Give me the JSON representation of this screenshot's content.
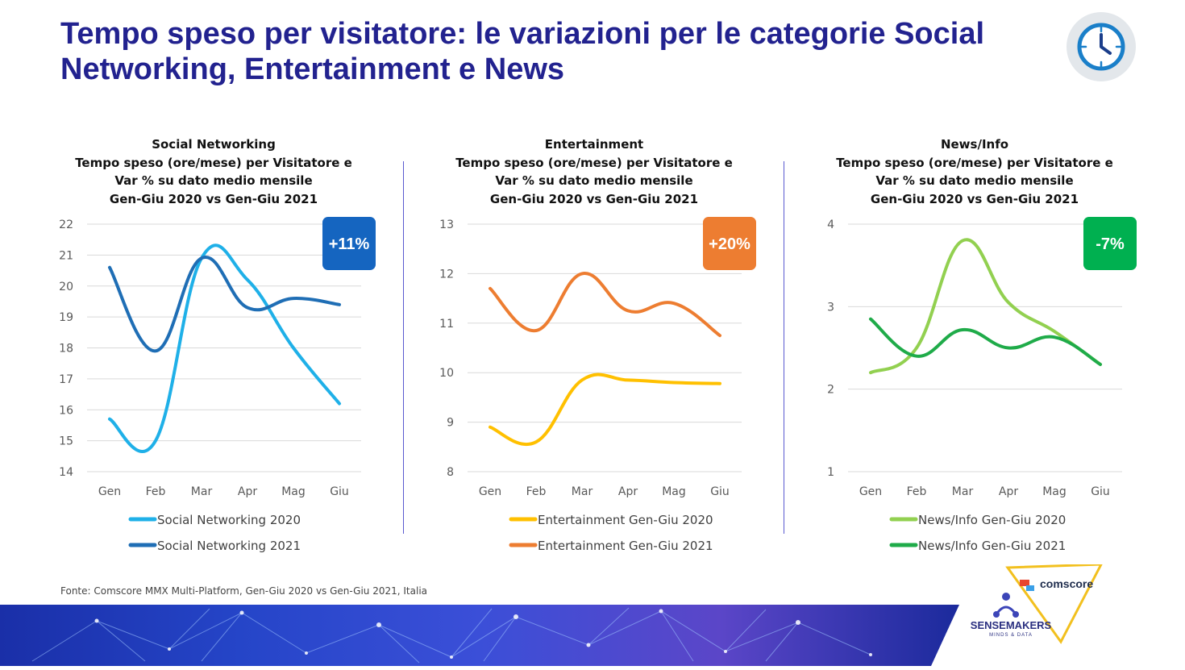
{
  "title": "Tempo speso per visitatore: le variazioni per le categorie Social Networking, Entertainment e News",
  "source": "Fonte: Comscore MMX Multi-Platform, Gen-Giu 2020 vs Gen-Giu 2021, Italia",
  "logos": {
    "comscore": "comscore",
    "sensemakers": "SENSEMAKERS",
    "sensemakers_tagline": "MINDS & DATA"
  },
  "icons": {
    "clock": "clock-icon"
  },
  "chart_data": [
    {
      "type": "line",
      "title_lines": [
        "Social Networking",
        "Tempo speso (ore/mese) per Visitatore e",
        "Var % su dato medio mensile",
        "Gen-Giu 2020 vs Gen-Giu 2021"
      ],
      "categories": [
        "Gen",
        "Feb",
        "Mar",
        "Apr",
        "Mag",
        "Giu"
      ],
      "ylim": [
        14,
        22
      ],
      "yticks": [
        14,
        15,
        16,
        17,
        18,
        19,
        20,
        21,
        22
      ],
      "grid": true,
      "legend": "bottom",
      "badge": {
        "text": "+11%",
        "color": "#1565c0"
      },
      "series": [
        {
          "name": "Social Networking 2020",
          "color": "#1fb0e8",
          "values": [
            15.7,
            15.0,
            20.9,
            20.2,
            18.0,
            16.2
          ]
        },
        {
          "name": "Social Networking 2021",
          "color": "#1f6eb5",
          "values": [
            20.6,
            17.9,
            20.9,
            19.3,
            19.6,
            19.4
          ]
        }
      ]
    },
    {
      "type": "line",
      "title_lines": [
        "Entertainment",
        "Tempo speso (ore/mese) per Visitatore e",
        "Var % su dato medio mensile",
        "Gen-Giu 2020 vs Gen-Giu 2021"
      ],
      "categories": [
        "Gen",
        "Feb",
        "Mar",
        "Apr",
        "Mag",
        "Giu"
      ],
      "ylim": [
        8,
        13
      ],
      "yticks": [
        8,
        9,
        10,
        11,
        12,
        13
      ],
      "grid": true,
      "legend": "bottom",
      "badge": {
        "text": "+20%",
        "color": "#ed7d31"
      },
      "series": [
        {
          "name": "Entertainment Gen-Giu 2020",
          "color": "#ffc000",
          "values": [
            8.9,
            8.6,
            9.85,
            9.85,
            9.8,
            9.78
          ]
        },
        {
          "name": "Entertainment Gen-Giu 2021",
          "color": "#ed7d31",
          "values": [
            11.7,
            10.85,
            12.0,
            11.25,
            11.4,
            10.75
          ]
        }
      ]
    },
    {
      "type": "line",
      "title_lines": [
        "News/Info",
        "Tempo speso (ore/mese) per Visitatore e",
        "Var % su dato medio mensile",
        "Gen-Giu 2020 vs Gen-Giu 2021"
      ],
      "categories": [
        "Gen",
        "Feb",
        "Mar",
        "Apr",
        "Mag",
        "Giu"
      ],
      "ylim": [
        1,
        4
      ],
      "yticks": [
        1,
        2,
        3,
        4
      ],
      "grid": true,
      "legend": "bottom",
      "badge": {
        "text": "-7%",
        "color": "#00b050"
      },
      "series": [
        {
          "name": "News/Info Gen-Giu 2020",
          "color": "#92d050",
          "values": [
            2.2,
            2.5,
            3.8,
            3.05,
            2.7,
            2.3
          ]
        },
        {
          "name": "News/Info Gen-Giu 2021",
          "color": "#1fab49",
          "values": [
            2.85,
            2.4,
            2.72,
            2.5,
            2.63,
            2.3
          ]
        }
      ]
    }
  ]
}
